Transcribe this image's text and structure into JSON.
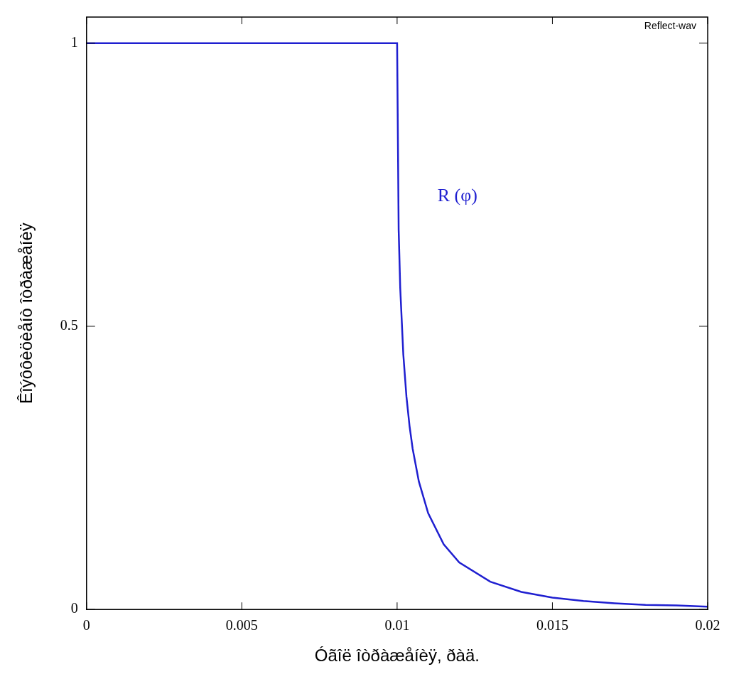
{
  "chart_data": {
    "type": "line",
    "title": "Reflect-wav",
    "x_label": "Óãîë îòðàæåíèÿ, ðàä.",
    "y_label": "Êîýôôèöèåíò îòðàæåíèÿ",
    "x": [
      0,
      0.005,
      0.01,
      0.01005,
      0.0101,
      0.0102,
      0.0103,
      0.0104,
      0.0105,
      0.0107,
      0.011,
      0.0115,
      0.012,
      0.013,
      0.014,
      0.015,
      0.016,
      0.017,
      0.018,
      0.019,
      0.02
    ],
    "series": [
      {
        "color": "#1f1fd0",
        "values": [
          1,
          1,
          1,
          0.67,
          0.568,
          0.45,
          0.376,
          0.324,
          0.284,
          0.226,
          0.17,
          0.115,
          0.083,
          0.049,
          0.031,
          0.021,
          0.015,
          0.011,
          0.008,
          0.007,
          0.005
        ]
      }
    ],
    "xlim": [
      0,
      0.02
    ],
    "ylim": [
      0,
      1.046
    ],
    "xticks": [
      0,
      0.005,
      0.01,
      0.015,
      0.02
    ],
    "yticks": [
      0,
      0.5,
      1
    ],
    "grid": false,
    "annotations": [
      {
        "text": "R (φ)",
        "x": 0.0113,
        "y": 0.73
      }
    ]
  }
}
